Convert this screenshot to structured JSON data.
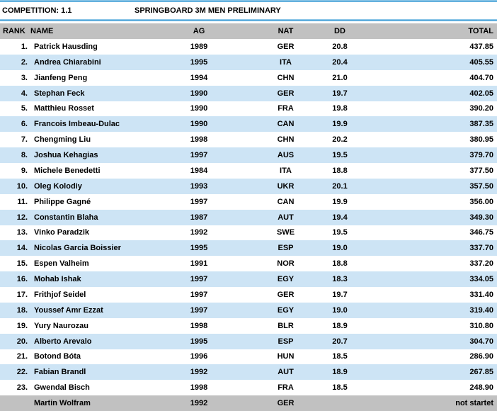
{
  "header": {
    "competition_label": "COMPETITION: 1.1",
    "event_title": "SPRINGBOARD 3M MEN PRELIMINARY"
  },
  "table": {
    "columns": [
      "RANK",
      "NAME",
      "AG",
      "NAT",
      "DD",
      "TOTAL"
    ],
    "rows": [
      {
        "rank": "1.",
        "name": "Patrick Hausding",
        "ag": "1989",
        "nat": "GER",
        "dd": "20.8",
        "total": "437.85"
      },
      {
        "rank": "2.",
        "name": "Andrea Chiarabini",
        "ag": "1995",
        "nat": "ITA",
        "dd": "20.4",
        "total": "405.55"
      },
      {
        "rank": "3.",
        "name": "Jianfeng Peng",
        "ag": "1994",
        "nat": "CHN",
        "dd": "21.0",
        "total": "404.70"
      },
      {
        "rank": "4.",
        "name": "Stephan Feck",
        "ag": "1990",
        "nat": "GER",
        "dd": "19.7",
        "total": "402.05"
      },
      {
        "rank": "5.",
        "name": "Matthieu Rosset",
        "ag": "1990",
        "nat": "FRA",
        "dd": "19.8",
        "total": "390.20"
      },
      {
        "rank": "6.",
        "name": "Francois Imbeau-Dulac",
        "ag": "1990",
        "nat": "CAN",
        "dd": "19.9",
        "total": "387.35"
      },
      {
        "rank": "7.",
        "name": "Chengming Liu",
        "ag": "1998",
        "nat": "CHN",
        "dd": "20.2",
        "total": "380.95"
      },
      {
        "rank": "8.",
        "name": "Joshua Kehagias",
        "ag": "1997",
        "nat": "AUS",
        "dd": "19.5",
        "total": "379.70"
      },
      {
        "rank": "9.",
        "name": "Michele Benedetti",
        "ag": "1984",
        "nat": "ITA",
        "dd": "18.8",
        "total": "377.50"
      },
      {
        "rank": "10.",
        "name": "Oleg Kolodiy",
        "ag": "1993",
        "nat": "UKR",
        "dd": "20.1",
        "total": "357.50"
      },
      {
        "rank": "11.",
        "name": "Philippe Gagné",
        "ag": "1997",
        "nat": "CAN",
        "dd": "19.9",
        "total": "356.00"
      },
      {
        "rank": "12.",
        "name": "Constantin Blaha",
        "ag": "1987",
        "nat": "AUT",
        "dd": "19.4",
        "total": "349.30"
      },
      {
        "rank": "13.",
        "name": "Vinko Paradzik",
        "ag": "1992",
        "nat": "SWE",
        "dd": "19.5",
        "total": "346.75"
      },
      {
        "rank": "14.",
        "name": "Nicolas Garcia Boissier",
        "ag": "1995",
        "nat": "ESP",
        "dd": "19.0",
        "total": "337.70"
      },
      {
        "rank": "15.",
        "name": "Espen Valheim",
        "ag": "1991",
        "nat": "NOR",
        "dd": "18.8",
        "total": "337.20"
      },
      {
        "rank": "16.",
        "name": "Mohab Ishak",
        "ag": "1997",
        "nat": "EGY",
        "dd": "18.3",
        "total": "334.05"
      },
      {
        "rank": "17.",
        "name": "Frithjof Seidel",
        "ag": "1997",
        "nat": "GER",
        "dd": "19.7",
        "total": "331.40"
      },
      {
        "rank": "18.",
        "name": "Youssef Amr Ezzat",
        "ag": "1997",
        "nat": "EGY",
        "dd": "19.0",
        "total": "319.40"
      },
      {
        "rank": "19.",
        "name": "Yury Naurozau",
        "ag": "1998",
        "nat": "BLR",
        "dd": "18.9",
        "total": "310.80"
      },
      {
        "rank": "20.",
        "name": "Alberto Arevalo",
        "ag": "1995",
        "nat": "ESP",
        "dd": "20.7",
        "total": "304.70"
      },
      {
        "rank": "21.",
        "name": "Botond Bóta",
        "ag": "1996",
        "nat": "HUN",
        "dd": "18.5",
        "total": "286.90"
      },
      {
        "rank": "22.",
        "name": "Fabian Brandl",
        "ag": "1992",
        "nat": "AUT",
        "dd": "18.9",
        "total": "267.85"
      },
      {
        "rank": "23.",
        "name": "Gwendal Bisch",
        "ag": "1998",
        "nat": "FRA",
        "dd": "18.5",
        "total": "248.90"
      },
      {
        "rank": "",
        "name": "Martin Wolfram",
        "ag": "1992",
        "nat": "GER",
        "dd": "",
        "total": "not startet"
      }
    ]
  },
  "colors": {
    "accent_blue": "#4aa2d8",
    "row_alt": "#cde4f5",
    "header_gray": "#c1c1c1",
    "text": "#000000"
  }
}
